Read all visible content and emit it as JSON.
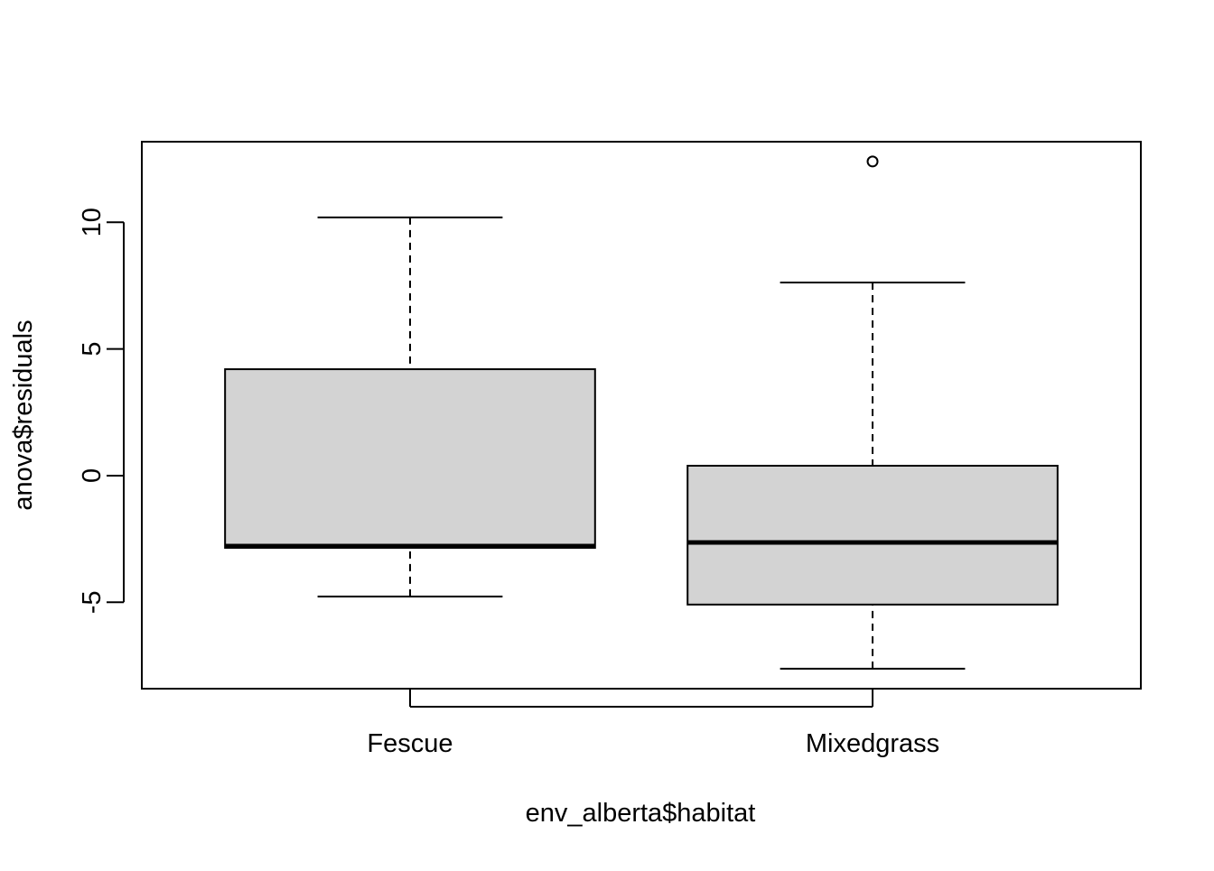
{
  "chart_data": {
    "type": "boxplot",
    "xlabel": "env_alberta$habitat",
    "ylabel": "anova$residuals",
    "categories": [
      "Fescue",
      "Mixedgrass"
    ],
    "boxes": [
      {
        "whisker_low": -4.77,
        "q1": -2.85,
        "median": -2.78,
        "q3": 4.2,
        "whisker_high": 10.19,
        "outliers": []
      },
      {
        "whisker_low": -7.62,
        "q1": -5.09,
        "median": -2.64,
        "q3": 0.39,
        "whisker_high": 7.62,
        "outliers": [
          12.4
        ]
      }
    ],
    "color": "#d3d3d3",
    "ylim": [
      -8.41,
      13.18
    ],
    "yticks": [
      -5,
      0,
      5,
      10
    ]
  }
}
